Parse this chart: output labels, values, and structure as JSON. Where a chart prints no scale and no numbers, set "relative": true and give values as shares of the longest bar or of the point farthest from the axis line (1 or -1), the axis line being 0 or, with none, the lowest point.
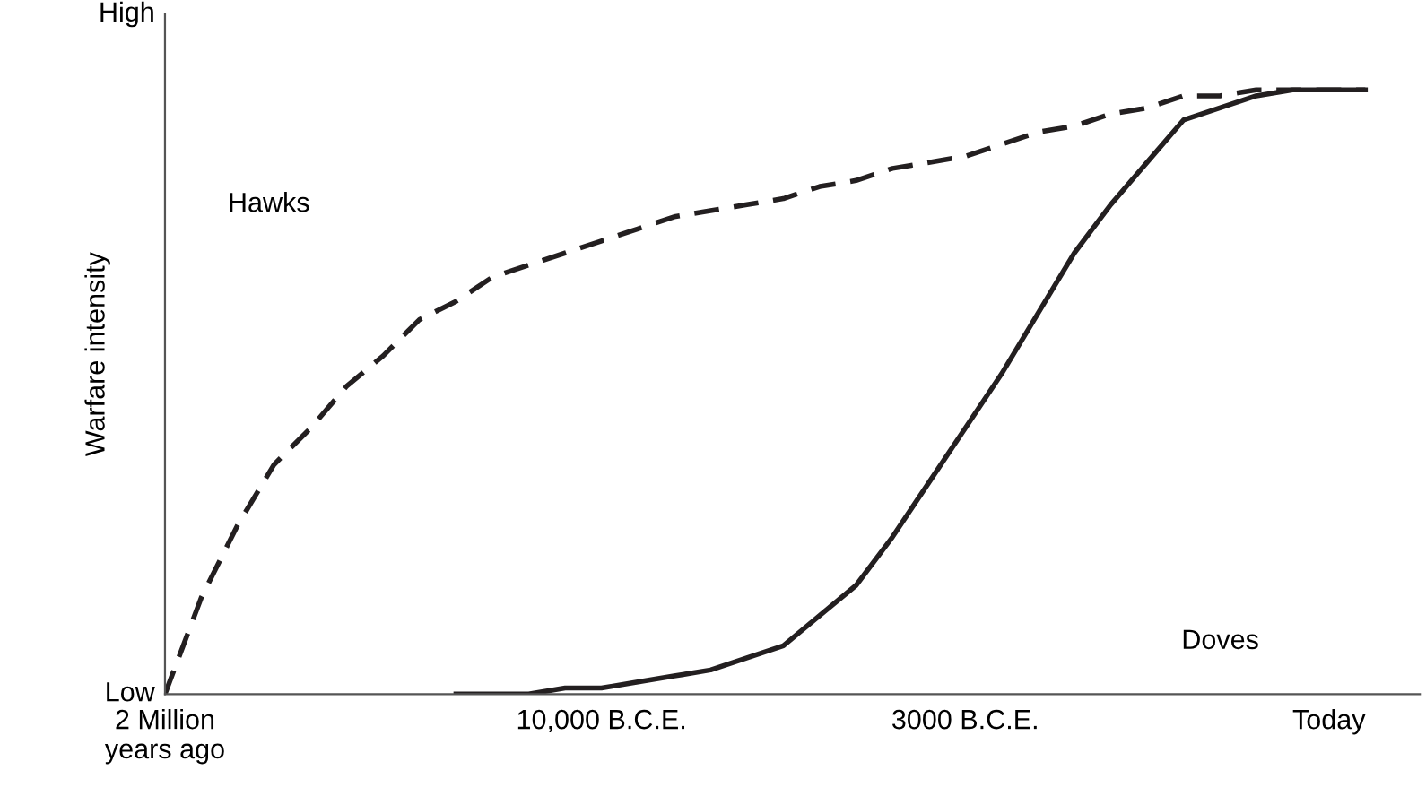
{
  "chart_data": {
    "type": "line",
    "relative": true,
    "ylabel": "Warfare intensity",
    "categories": [
      "2 Million\nyears ago",
      null,
      null,
      null,
      null,
      null,
      null,
      null,
      null,
      null,
      null,
      null,
      "10,000 B.C.E.",
      null,
      null,
      null,
      null,
      null,
      null,
      null,
      null,
      null,
      "3000 B.C.E.",
      null,
      null,
      null,
      null,
      null,
      null,
      null,
      null,
      null,
      "Today",
      null
    ],
    "series": [
      {
        "color": "#231f20",
        "line_style": "dashed",
        "values": [
          0,
          0.16,
          0.28,
          0.38,
          0.44,
          0.51,
          0.56,
          0.62,
          0.65,
          0.69,
          0.71,
          0.73,
          0.75,
          0.77,
          0.79,
          0.8,
          0.81,
          0.82,
          0.84,
          0.85,
          0.87,
          0.88,
          0.89,
          0.91,
          0.93,
          0.94,
          0.96,
          0.97,
          0.99,
          0.99,
          1,
          1,
          1,
          1
        ]
      },
      {
        "color": "#231f20",
        "line_style": "solid",
        "values": [
          null,
          null,
          null,
          null,
          null,
          null,
          null,
          null,
          0,
          0,
          0,
          0.01,
          0.01,
          0.02,
          0.03,
          0.04,
          0.06,
          0.08,
          0.13,
          0.18,
          0.26,
          0.35,
          0.44,
          0.53,
          0.63,
          0.73,
          0.81,
          0.88,
          0.95,
          0.97,
          0.99,
          1,
          1,
          1
        ]
      }
    ],
    "annotations": [
      "High",
      "Low",
      "Hawks",
      "Doves"
    ],
    "grid": false,
    "legend": false
  }
}
